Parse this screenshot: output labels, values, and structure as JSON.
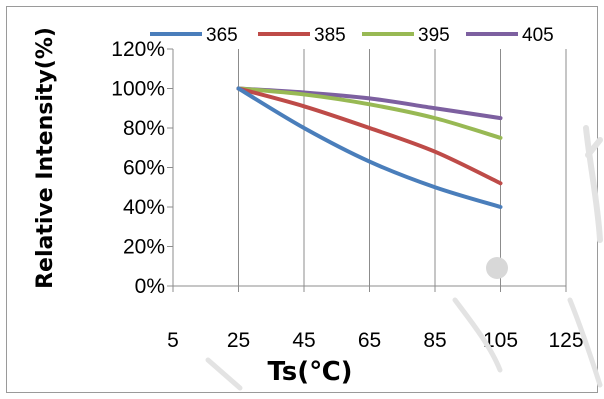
{
  "chart_data": {
    "type": "line",
    "title": "",
    "xlabel": "Ts(℃)",
    "ylabel": "Relative Intensity(%)",
    "xlim": [
      5,
      125
    ],
    "ylim": [
      0,
      120
    ],
    "x_ticks": [
      "5",
      "25",
      "45",
      "65",
      "85",
      "105",
      "125"
    ],
    "y_ticks": [
      "0%",
      "20%",
      "40%",
      "60%",
      "80%",
      "100%",
      "120%"
    ],
    "grid": "vertical",
    "legend_position": "top",
    "x": [
      25,
      45,
      65,
      85,
      105
    ],
    "series": [
      {
        "name": "365",
        "color": "#4a7ebb",
        "values": [
          100,
          80,
          63,
          50,
          40
        ]
      },
      {
        "name": "385",
        "color": "#be4b48",
        "values": [
          100,
          91,
          80,
          68,
          52
        ]
      },
      {
        "name": "395",
        "color": "#98b954",
        "values": [
          100,
          97,
          92,
          85,
          75
        ]
      },
      {
        "name": "405",
        "color": "#7d60a0",
        "values": [
          100,
          98,
          95,
          90,
          85
        ]
      }
    ]
  },
  "decorations": {
    "watermark_color": "#e3e3e3"
  }
}
